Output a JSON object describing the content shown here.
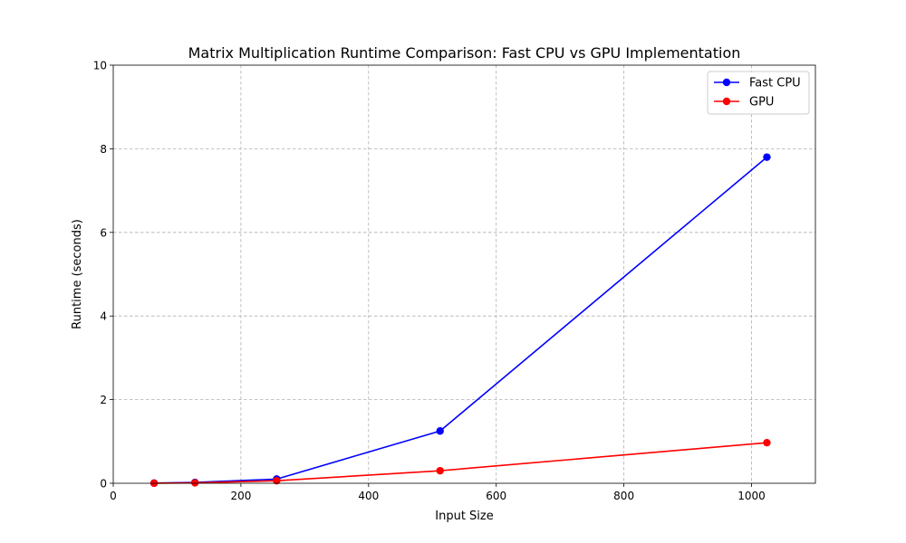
{
  "chart_data": {
    "type": "line",
    "title": "Matrix Multiplication Runtime Comparison: Fast CPU vs GPU Implementation",
    "xlabel": "Input Size",
    "ylabel": "Runtime (seconds)",
    "xlim": [
      0,
      1100
    ],
    "ylim": [
      0,
      10
    ],
    "xticks": [
      0,
      200,
      400,
      600,
      800,
      1000
    ],
    "yticks": [
      0,
      2,
      4,
      6,
      8,
      10
    ],
    "grid": true,
    "legend_position": "top-right",
    "x": [
      64,
      128,
      256,
      512,
      1024
    ],
    "series": [
      {
        "name": "Fast CPU",
        "color": "#0000ff",
        "marker": "circle",
        "values": [
          0.005,
          0.02,
          0.1,
          1.25,
          7.8
        ]
      },
      {
        "name": "GPU",
        "color": "#ff0000",
        "marker": "circle",
        "values": [
          0.002,
          0.01,
          0.06,
          0.3,
          0.97
        ]
      }
    ]
  }
}
